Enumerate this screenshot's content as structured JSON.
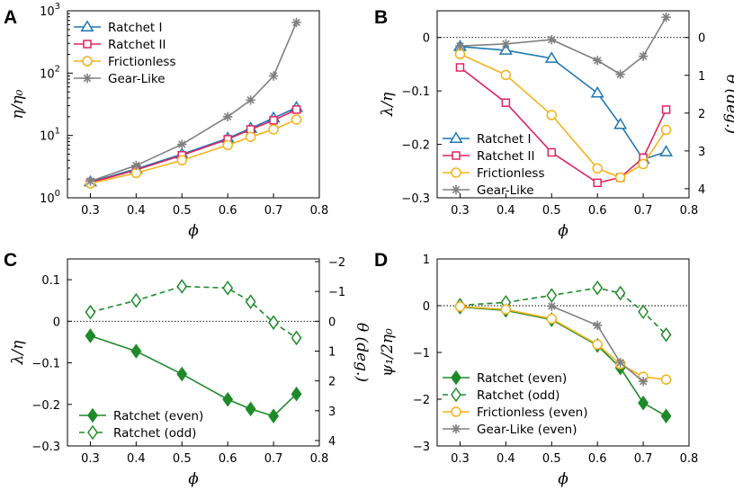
{
  "colors": {
    "ratchet1": "#1f77b4",
    "ratchet2": "#e0245e",
    "frictionless": "#f5b21a",
    "gearlike": "#808080",
    "ratchet_green": "#1f8a2a"
  },
  "chart_data": [
    {
      "panel": "A",
      "type": "line",
      "ylog": true,
      "xlabel": "ϕ",
      "ylabel": "η/η₀",
      "xlim": [
        0.25,
        0.8
      ],
      "ylim": [
        1,
        1000
      ],
      "xticks": [
        "0.3",
        "0.4",
        "0.5",
        "0.6",
        "0.7",
        "0.8"
      ],
      "yticks_exp": [
        "0",
        "1",
        "2",
        "3"
      ],
      "x": [
        0.3,
        0.4,
        0.5,
        0.6,
        0.65,
        0.7,
        0.75
      ],
      "legend_position": "top-left",
      "series": [
        {
          "name": "Ratchet I",
          "color": "#1f77b4",
          "marker": "triangle",
          "values": [
            1.8,
            2.9,
            5.0,
            9.0,
            13.0,
            19.0,
            28.0
          ]
        },
        {
          "name": "Ratchet II",
          "color": "#e0245e",
          "marker": "square",
          "values": [
            1.75,
            2.8,
            4.8,
            8.7,
            12.5,
            17.5,
            26.0
          ]
        },
        {
          "name": "Frictionless",
          "color": "#f5b21a",
          "marker": "circle",
          "values": [
            1.7,
            2.5,
            4.0,
            7.0,
            9.5,
            12.5,
            18.0
          ]
        },
        {
          "name": "Gear-Like",
          "color": "#808080",
          "marker": "star",
          "values": [
            1.85,
            3.3,
            7.2,
            20.0,
            37.0,
            90.0,
            650.0
          ]
        }
      ]
    },
    {
      "panel": "B",
      "type": "line",
      "xlabel": "ϕ",
      "ylabel": "λ/η",
      "ylabel_right": "θ (deg.)",
      "xlim": [
        0.25,
        0.8
      ],
      "ylim": [
        -0.3,
        0.05
      ],
      "xticks": [
        "0.3",
        "0.4",
        "0.5",
        "0.6",
        "0.7",
        "0.8"
      ],
      "yticks": [
        "0",
        "−0.1",
        "−0.2",
        "−0.3"
      ],
      "yticks_right": [
        "0",
        "1",
        "2",
        "3",
        "4"
      ],
      "x": [
        0.3,
        0.4,
        0.5,
        0.6,
        0.65,
        0.7,
        0.75
      ],
      "legend_position": "bottom-left",
      "series": [
        {
          "name": "Ratchet I",
          "color": "#1f77b4",
          "marker": "triangle",
          "values": [
            -0.017,
            -0.024,
            -0.039,
            -0.104,
            -0.163,
            -0.228,
            -0.214
          ]
        },
        {
          "name": "Ratchet II",
          "color": "#e0245e",
          "marker": "square",
          "values": [
            -0.056,
            -0.122,
            -0.215,
            -0.272,
            -0.262,
            -0.225,
            -0.135
          ]
        },
        {
          "name": "Frictionless",
          "color": "#f5b21a",
          "marker": "circle",
          "values": [
            -0.031,
            -0.07,
            -0.145,
            -0.245,
            -0.262,
            -0.237,
            -0.173
          ]
        },
        {
          "name": "Gear-Like",
          "color": "#808080",
          "marker": "star",
          "values": [
            -0.016,
            -0.012,
            -0.004,
            -0.043,
            -0.069,
            -0.035,
            0.038
          ]
        }
      ]
    },
    {
      "panel": "C",
      "type": "line",
      "xlabel": "ϕ",
      "ylabel": "λ/η",
      "ylabel_right": "θ (deg.)",
      "xlim": [
        0.25,
        0.8
      ],
      "ylim": [
        -0.3,
        0.15
      ],
      "xticks": [
        "0.3",
        "0.4",
        "0.5",
        "0.6",
        "0.7",
        "0.8"
      ],
      "yticks": [
        "0.1",
        "0",
        "−0.1",
        "−0.2",
        "−0.3"
      ],
      "yticks_right": [
        "−2",
        "−1",
        "0",
        "1",
        "2",
        "3",
        "4"
      ],
      "x": [
        0.3,
        0.4,
        0.5,
        0.6,
        0.65,
        0.7,
        0.75
      ],
      "legend_position": "bottom-left",
      "series": [
        {
          "name": "Ratchet (even)",
          "color": "#1f8a2a",
          "marker": "diamond-filled",
          "dashed": false,
          "values": [
            -0.035,
            -0.072,
            -0.127,
            -0.188,
            -0.211,
            -0.228,
            -0.175
          ]
        },
        {
          "name": "Ratchet (odd)",
          "color": "#1f8a2a",
          "marker": "diamond-open",
          "dashed": true,
          "values": [
            0.022,
            0.05,
            0.084,
            0.08,
            0.047,
            -0.003,
            -0.04
          ]
        }
      ]
    },
    {
      "panel": "D",
      "type": "line",
      "xlabel": "ϕ",
      "ylabel": "ψ₁/2η₀",
      "xlim": [
        0.25,
        0.8
      ],
      "ylim": [
        -3,
        1
      ],
      "xticks": [
        "0.3",
        "0.4",
        "0.5",
        "0.6",
        "0.7",
        "0.8"
      ],
      "yticks": [
        "1",
        "0",
        "−1",
        "−2",
        "−3"
      ],
      "x": [
        0.3,
        0.4,
        0.5,
        0.6,
        0.65,
        0.7,
        0.75
      ],
      "legend_position": "bottom-left",
      "series": [
        {
          "name": "Ratchet (even)",
          "color": "#1f8a2a",
          "marker": "diamond-filled",
          "dashed": false,
          "values": [
            -0.03,
            -0.1,
            -0.3,
            -0.85,
            -1.33,
            -2.08,
            -2.36
          ]
        },
        {
          "name": "Ratchet (odd)",
          "color": "#1f8a2a",
          "marker": "diamond-open",
          "dashed": true,
          "values": [
            0.01,
            0.07,
            0.22,
            0.38,
            0.27,
            -0.13,
            -0.62
          ]
        },
        {
          "name": "Frictionless (even)",
          "color": "#f5b21a",
          "marker": "circle",
          "dashed": false,
          "values": [
            -0.02,
            -0.08,
            -0.28,
            -0.83,
            -1.25,
            -1.52,
            -1.58
          ]
        },
        {
          "name": "Gear-Like (even)",
          "color": "#808080",
          "marker": "star",
          "dashed": false,
          "values": [
            null,
            null,
            -0.01,
            -0.42,
            -1.22,
            -1.62,
            null
          ]
        }
      ]
    }
  ]
}
